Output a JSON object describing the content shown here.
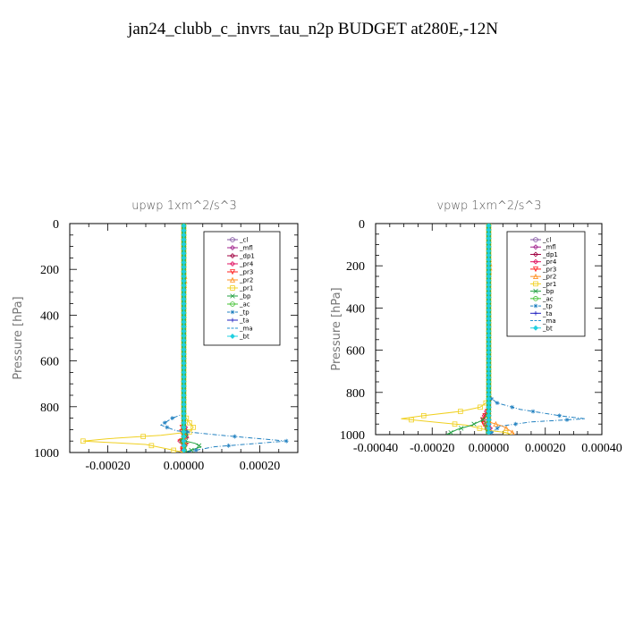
{
  "title": "jan24_clubb_c_invrs_tau_n2p  BUDGET at280E,-12N",
  "chart_data": [
    {
      "type": "line",
      "title": "upwp   1xm^2/s^3",
      "ylabel": "Pressure [hPa]",
      "xlabel": "",
      "xlim": [
        -0.0003,
        0.0003
      ],
      "ylim": [
        1000,
        0
      ],
      "xticks": [
        -0.0002,
        0,
        0.0002
      ],
      "xtick_labels": [
        "-0.00020",
        "0.00000",
        "0.00020"
      ],
      "yticks": [
        0,
        200,
        400,
        600,
        800,
        1000
      ],
      "ytick_labels": [
        "0",
        "200",
        "400",
        "600",
        "800",
        "1000"
      ],
      "legend_position": "top-right",
      "series": [
        {
          "name": "_cl",
          "color": "#8050a0",
          "marker": "circle",
          "dash": "",
          "points": [
            [
              0,
              0
            ],
            [
              0,
              1000
            ]
          ]
        },
        {
          "name": "_mfl",
          "color": "#a0208c",
          "marker": "diamond",
          "dash": "",
          "points": [
            [
              0,
              0
            ],
            [
              0,
              1000
            ]
          ]
        },
        {
          "name": "_dp1",
          "color": "#a00040",
          "marker": "diamond",
          "dash": "",
          "points": [
            [
              0,
              0
            ],
            [
              0,
              1000
            ]
          ]
        },
        {
          "name": "_pr4",
          "color": "#e01060",
          "marker": "diamond",
          "dash": "",
          "points": [
            [
              0,
              0
            ],
            [
              0,
              880
            ],
            [
              8e-06,
              900
            ],
            [
              -6e-06,
              920
            ],
            [
              1.2e-05,
              935
            ],
            [
              -1e-05,
              950
            ],
            [
              8e-06,
              965
            ],
            [
              -6e-06,
              980
            ],
            [
              0,
              1000
            ]
          ]
        },
        {
          "name": "_pr3",
          "color": "#ff2020",
          "marker": "triangle-down",
          "dash": "",
          "points": [
            [
              0,
              0
            ],
            [
              0,
              880
            ],
            [
              -1e-05,
              905
            ],
            [
              1e-05,
              925
            ],
            [
              -1.4e-05,
              945
            ],
            [
              1.2e-05,
              960
            ],
            [
              -8e-06,
              975
            ],
            [
              0,
              1000
            ]
          ]
        },
        {
          "name": "_pr2",
          "color": "#ff9020",
          "marker": "triangle",
          "dash": "",
          "points": [
            [
              0,
              0
            ],
            [
              0,
              200
            ],
            [
              3e-06,
              240
            ],
            [
              0,
              300
            ],
            [
              0,
              1000
            ]
          ]
        },
        {
          "name": "_pr1",
          "color": "#f0d020",
          "marker": "square",
          "dash": "",
          "points": [
            [
              0,
              0
            ],
            [
              0,
              830
            ],
            [
              1e-05,
              860
            ],
            [
              2.5e-05,
              890
            ],
            [
              1.5e-05,
              910
            ],
            [
              -6e-05,
              925
            ],
            [
              -0.0002,
              940
            ],
            [
              -0.000265,
              950
            ],
            [
              -0.0001,
              965
            ],
            [
              -4e-05,
              985
            ],
            [
              0,
              1000
            ]
          ]
        },
        {
          "name": "_bp",
          "color": "#20a040",
          "marker": "x",
          "dash": "",
          "points": [
            [
              0,
              0
            ],
            [
              0,
              900
            ],
            [
              1e-05,
              925
            ],
            [
              -8e-06,
              945
            ],
            [
              3e-05,
              960
            ],
            [
              4.5e-05,
              975
            ],
            [
              2e-05,
              990
            ],
            [
              0,
              1000
            ]
          ]
        },
        {
          "name": "_ac",
          "color": "#40c030",
          "marker": "circle",
          "dash": "",
          "points": [
            [
              0,
              0
            ],
            [
              0,
              930
            ],
            [
              -6e-06,
              955
            ],
            [
              4e-06,
              975
            ],
            [
              0,
              1000
            ]
          ]
        },
        {
          "name": "_tp",
          "color": "#2080c0",
          "marker": "star",
          "dash": "5,2,1,2",
          "points": [
            [
              0,
              0
            ],
            [
              0,
              830
            ],
            [
              -3e-05,
              850
            ],
            [
              -6e-05,
              880
            ],
            [
              -2e-05,
              905
            ],
            [
              0.0001,
              925
            ],
            [
              0.00027,
              950
            ],
            [
              8e-05,
              975
            ],
            [
              0,
              1000
            ]
          ]
        },
        {
          "name": "_ta",
          "color": "#2020c0",
          "marker": "plus",
          "dash": "",
          "points": [
            [
              0,
              0
            ],
            [
              0,
              1000
            ]
          ]
        },
        {
          "name": "_ma",
          "color": "#2090d0",
          "marker": "none",
          "dash": "6,3",
          "points": [
            [
              0,
              0
            ],
            [
              0,
              1000
            ]
          ]
        },
        {
          "name": "_bt",
          "color": "#20d0e0",
          "marker": "diamond-fill",
          "dash": "",
          "points": [
            [
              0,
              0
            ],
            [
              0,
              1000
            ]
          ]
        }
      ]
    },
    {
      "type": "line",
      "title": "vpwp   1xm^2/s^3",
      "ylabel": "Pressure [hPa]",
      "xlabel": "",
      "xlim": [
        -0.0004,
        0.0004
      ],
      "ylim": [
        1000,
        0
      ],
      "xticks": [
        -0.0004,
        -0.0002,
        0,
        0.0002,
        0.0004
      ],
      "xtick_labels": [
        "-0.00040",
        "-0.00020",
        "0.00000",
        "0.00020",
        "0.00040"
      ],
      "yticks": [
        0,
        200,
        400,
        600,
        800,
        1000
      ],
      "ytick_labels": [
        "0",
        "200",
        "400",
        "600",
        "800",
        "1000"
      ],
      "legend_position": "top-right",
      "series": [
        {
          "name": "_cl",
          "color": "#8050a0",
          "marker": "circle",
          "dash": "",
          "points": [
            [
              0,
              0
            ],
            [
              0,
              1000
            ]
          ]
        },
        {
          "name": "_mfl",
          "color": "#a0208c",
          "marker": "diamond",
          "dash": "",
          "points": [
            [
              0,
              0
            ],
            [
              0,
              1000
            ]
          ]
        },
        {
          "name": "_dp1",
          "color": "#a00040",
          "marker": "diamond",
          "dash": "",
          "points": [
            [
              0,
              0
            ],
            [
              0,
              1000
            ]
          ]
        },
        {
          "name": "_pr4",
          "color": "#e01060",
          "marker": "diamond",
          "dash": "",
          "points": [
            [
              0,
              0
            ],
            [
              0,
              870
            ],
            [
              -1.2e-05,
              900
            ],
            [
              -2e-05,
              925
            ],
            [
              -1e-05,
              950
            ],
            [
              5e-06,
              970
            ],
            [
              0,
              1000
            ]
          ]
        },
        {
          "name": "_pr3",
          "color": "#ff2020",
          "marker": "triangle-down",
          "dash": "",
          "points": [
            [
              0,
              0
            ],
            [
              0,
              880
            ],
            [
              -1.5e-05,
              915
            ],
            [
              -2.5e-05,
              940
            ],
            [
              -1e-05,
              960
            ],
            [
              0,
              1000
            ]
          ]
        },
        {
          "name": "_pr2",
          "color": "#ff9020",
          "marker": "triangle",
          "dash": "",
          "points": [
            [
              0,
              0
            ],
            [
              0,
              150
            ],
            [
              4e-06,
              200
            ],
            [
              0,
              260
            ],
            [
              0,
              940
            ],
            [
              5e-05,
              960
            ],
            [
              8e-05,
              985
            ],
            [
              9e-05,
              1000
            ]
          ]
        },
        {
          "name": "_pr1",
          "color": "#f0d020",
          "marker": "square",
          "dash": "",
          "points": [
            [
              0,
              0
            ],
            [
              0,
              840
            ],
            [
              -3e-05,
              870
            ],
            [
              -0.0001,
              890
            ],
            [
              -0.00023,
              910
            ],
            [
              -0.00031,
              925
            ],
            [
              -0.0002,
              940
            ],
            [
              -8e-05,
              955
            ],
            [
              0,
              980
            ],
            [
              6e-05,
              990
            ],
            [
              8e-05,
              1000
            ]
          ]
        },
        {
          "name": "_bp",
          "color": "#20a040",
          "marker": "x",
          "dash": "",
          "points": [
            [
              0,
              0
            ],
            [
              0,
              900
            ],
            [
              -2e-05,
              930
            ],
            [
              -6e-05,
              955
            ],
            [
              -0.00011,
              975
            ],
            [
              -0.00015,
              1000
            ]
          ]
        },
        {
          "name": "_ac",
          "color": "#40c030",
          "marker": "circle",
          "dash": "",
          "points": [
            [
              0,
              0
            ],
            [
              0,
              930
            ],
            [
              -1e-05,
              955
            ],
            [
              -4e-06,
              980
            ],
            [
              0,
              1000
            ]
          ]
        },
        {
          "name": "_tp",
          "color": "#2080c0",
          "marker": "star",
          "dash": "5,2,1,2",
          "points": [
            [
              0,
              0
            ],
            [
              0,
              820
            ],
            [
              3e-05,
              850
            ],
            [
              0.00011,
              880
            ],
            [
              0.00025,
              910
            ],
            [
              0.00034,
              925
            ],
            [
              0.00015,
              940
            ],
            [
              4e-05,
              960
            ],
            [
              0,
              1000
            ]
          ]
        },
        {
          "name": "_ta",
          "color": "#2020c0",
          "marker": "plus",
          "dash": "",
          "points": [
            [
              0,
              0
            ],
            [
              0,
              1000
            ]
          ]
        },
        {
          "name": "_ma",
          "color": "#2090d0",
          "marker": "none",
          "dash": "6,3",
          "points": [
            [
              0,
              0
            ],
            [
              0,
              1000
            ]
          ]
        },
        {
          "name": "_bt",
          "color": "#20d0e0",
          "marker": "diamond-fill",
          "dash": "",
          "points": [
            [
              0,
              0
            ],
            [
              0,
              1000
            ]
          ]
        }
      ]
    }
  ]
}
